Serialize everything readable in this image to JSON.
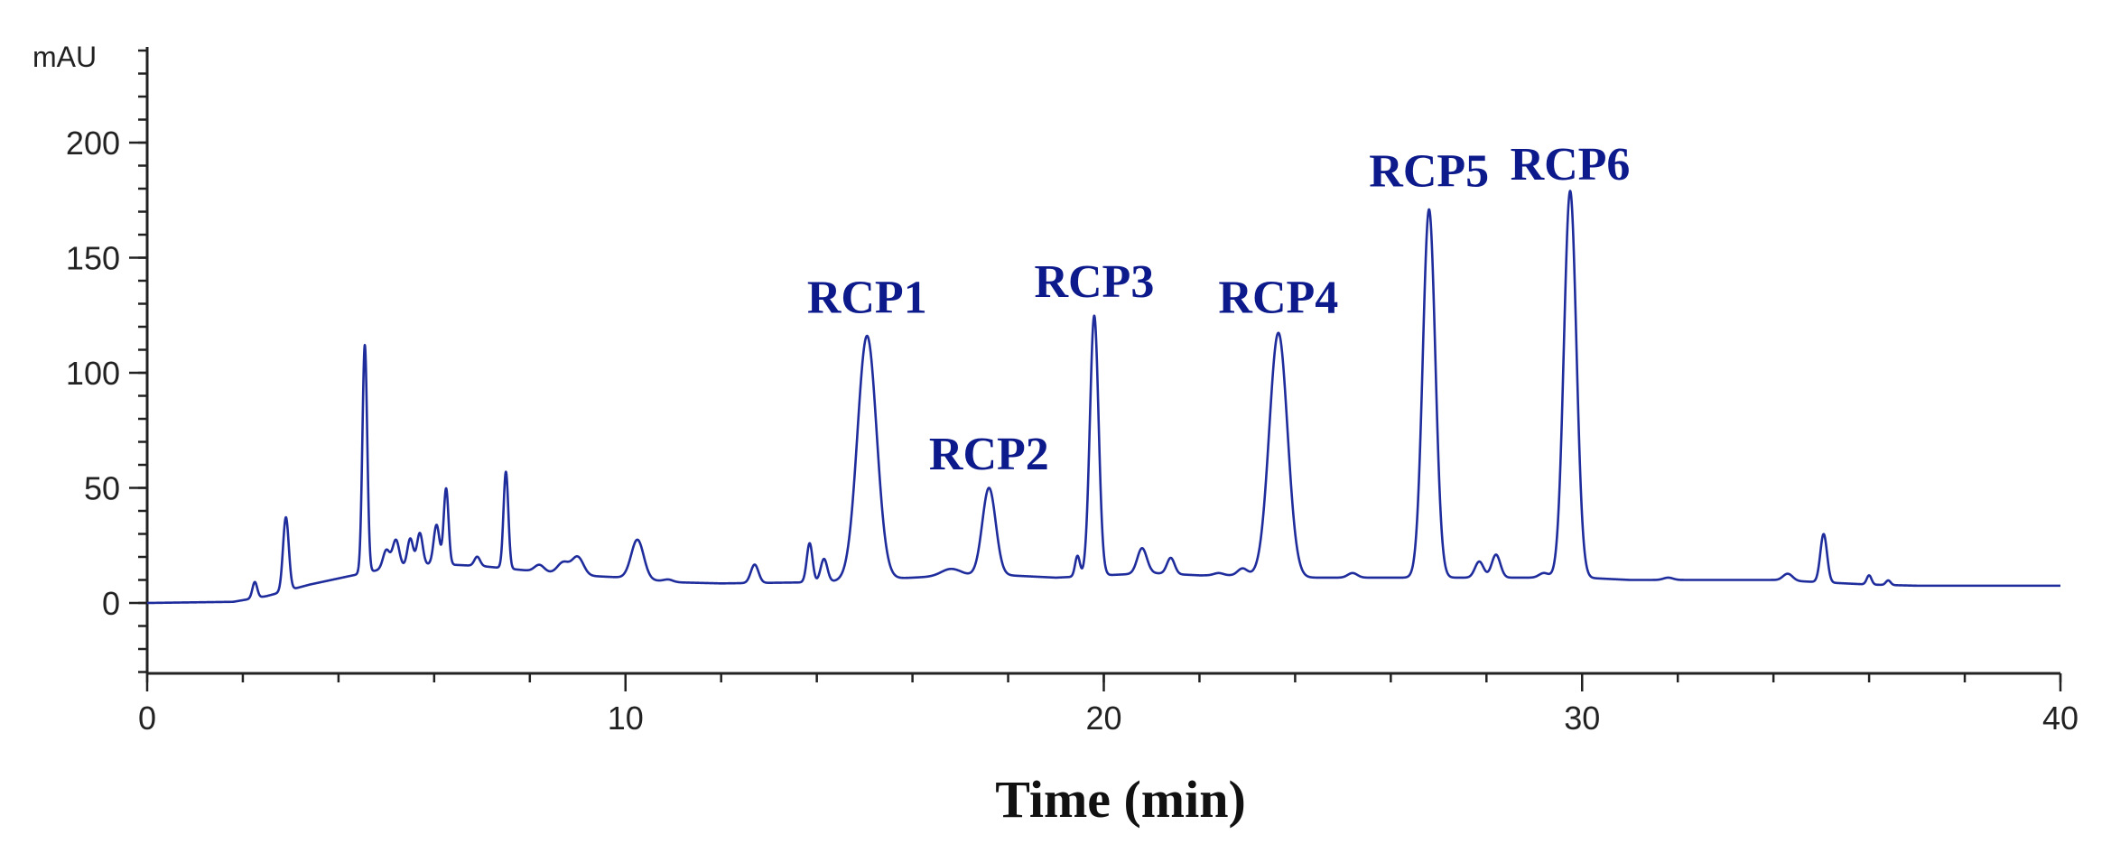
{
  "chart_data": {
    "type": "line",
    "title": "",
    "xlabel": "Time (min)",
    "ylabel": "",
    "y_unit": "mAU",
    "xlim": [
      0,
      40
    ],
    "ylim": [
      -30,
      240
    ],
    "x_ticks": [
      0,
      10,
      20,
      30,
      40
    ],
    "x_minor_step": 2,
    "y_ticks": [
      0,
      50,
      100,
      150,
      200
    ],
    "y_minor_step": 10,
    "grid": false,
    "legend": "none",
    "colors": {
      "trace": "#1f2c9c",
      "peak_labels": "#0d1a8c",
      "axes": "#222222"
    },
    "baseline": [
      [
        0,
        0
      ],
      [
        1.8,
        0.5
      ],
      [
        2.5,
        3
      ],
      [
        3.4,
        8
      ],
      [
        4.3,
        12
      ],
      [
        5,
        15
      ],
      [
        6,
        17
      ],
      [
        7,
        16
      ],
      [
        8,
        14
      ],
      [
        9,
        12
      ],
      [
        10,
        11
      ],
      [
        11,
        9
      ],
      [
        12,
        8.5
      ],
      [
        14,
        9
      ],
      [
        15,
        10
      ],
      [
        16,
        11
      ],
      [
        17,
        12
      ],
      [
        18,
        12
      ],
      [
        19,
        11
      ],
      [
        20,
        12
      ],
      [
        21,
        13
      ],
      [
        22,
        12
      ],
      [
        23,
        12
      ],
      [
        24,
        11
      ],
      [
        25,
        11
      ],
      [
        26,
        11
      ],
      [
        27,
        11
      ],
      [
        28,
        11
      ],
      [
        29,
        11
      ],
      [
        30,
        11
      ],
      [
        31,
        10
      ],
      [
        32,
        10
      ],
      [
        33,
        10
      ],
      [
        34,
        10
      ],
      [
        35,
        9
      ],
      [
        36,
        8
      ],
      [
        37,
        7.5
      ],
      [
        40,
        7.5
      ]
    ],
    "peaks": [
      {
        "t": 2.25,
        "height": 7,
        "width": 0.05
      },
      {
        "t": 2.9,
        "height": 32,
        "width": 0.06
      },
      {
        "t": 4.55,
        "height": 99,
        "width": 0.05
      },
      {
        "t": 5.0,
        "height": 8,
        "width": 0.07
      },
      {
        "t": 5.2,
        "height": 12,
        "width": 0.07
      },
      {
        "t": 5.5,
        "height": 12,
        "width": 0.06
      },
      {
        "t": 5.7,
        "height": 14,
        "width": 0.06
      },
      {
        "t": 6.05,
        "height": 17,
        "width": 0.06
      },
      {
        "t": 6.25,
        "height": 33,
        "width": 0.05
      },
      {
        "t": 6.9,
        "height": 4,
        "width": 0.06
      },
      {
        "t": 7.5,
        "height": 42,
        "width": 0.05
      },
      {
        "t": 8.2,
        "height": 3,
        "width": 0.1
      },
      {
        "t": 8.7,
        "height": 5,
        "width": 0.12
      },
      {
        "t": 9.0,
        "height": 8,
        "width": 0.12
      },
      {
        "t": 10.25,
        "height": 17,
        "width": 0.13
      },
      {
        "t": 10.9,
        "height": 1,
        "width": 0.1
      },
      {
        "t": 12.7,
        "height": 8,
        "width": 0.08
      },
      {
        "t": 13.85,
        "height": 17,
        "width": 0.06
      },
      {
        "t": 14.15,
        "height": 10,
        "width": 0.07
      },
      {
        "t": 15.05,
        "height": 106,
        "width": 0.2
      },
      {
        "t": 16.8,
        "height": 3,
        "width": 0.2
      },
      {
        "t": 17.6,
        "height": 38,
        "width": 0.14
      },
      {
        "t": 19.45,
        "height": 9,
        "width": 0.05
      },
      {
        "t": 19.8,
        "height": 113,
        "width": 0.09
      },
      {
        "t": 20.8,
        "height": 11,
        "width": 0.1
      },
      {
        "t": 21.4,
        "height": 7,
        "width": 0.08
      },
      {
        "t": 22.4,
        "height": 1,
        "width": 0.1
      },
      {
        "t": 22.9,
        "height": 3,
        "width": 0.1
      },
      {
        "t": 23.65,
        "height": 106,
        "width": 0.19
      },
      {
        "t": 25.2,
        "height": 2,
        "width": 0.1
      },
      {
        "t": 26.8,
        "height": 160,
        "width": 0.13
      },
      {
        "t": 27.85,
        "height": 7,
        "width": 0.09
      },
      {
        "t": 28.2,
        "height": 10,
        "width": 0.09
      },
      {
        "t": 29.2,
        "height": 2,
        "width": 0.1
      },
      {
        "t": 29.75,
        "height": 168,
        "width": 0.13
      },
      {
        "t": 31.8,
        "height": 1,
        "width": 0.1
      },
      {
        "t": 34.3,
        "height": 3,
        "width": 0.1
      },
      {
        "t": 35.05,
        "height": 21,
        "width": 0.07
      },
      {
        "t": 36.0,
        "height": 4,
        "width": 0.05
      },
      {
        "t": 36.4,
        "height": 2,
        "width": 0.05
      }
    ],
    "annotations": [
      {
        "text": "RCP1",
        "x": 15.05,
        "y": 126
      },
      {
        "text": "RCP2",
        "x": 17.6,
        "y": 58
      },
      {
        "text": "RCP3",
        "x": 19.8,
        "y": 133
      },
      {
        "text": "RCP4",
        "x": 23.65,
        "y": 126
      },
      {
        "text": "RCP5",
        "x": 26.8,
        "y": 181
      },
      {
        "text": "RCP6",
        "x": 29.75,
        "y": 184
      }
    ]
  }
}
